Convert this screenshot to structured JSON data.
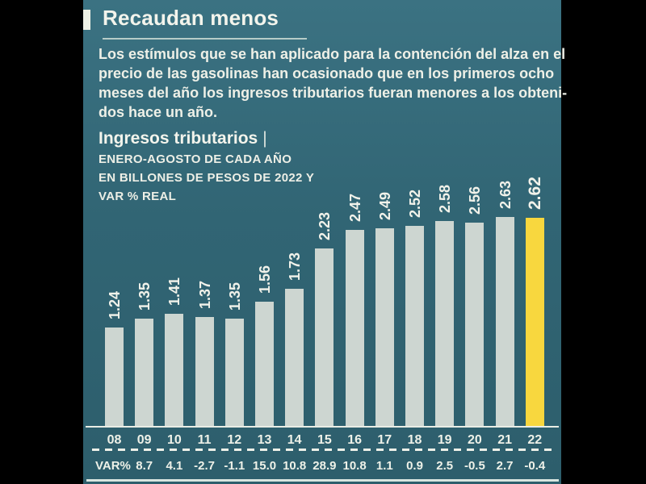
{
  "header": {
    "title": "Recaudan menos"
  },
  "intro": {
    "lines": [
      "Los estímulos que se han aplicado para la contención del alza en el",
      "precio de las gasolinas han ocasionado que en los primeros ocho",
      "meses del año los ingresos tributarios fueran menores a los obteni-",
      "dos hace un año."
    ]
  },
  "chart_header": {
    "title": "Ingresos tributarios",
    "separator": "|",
    "subtitle_lines": [
      "ENERO-AGOSTO DE CADA AÑO",
      "EN BILLONES DE PESOS DE 2022 Y",
      "VAR % REAL"
    ]
  },
  "chart_data": {
    "type": "bar",
    "title": "Ingresos tributarios, enero-agosto de cada año",
    "ylabel": "Billones de pesos de 2022",
    "categories": [
      "08",
      "09",
      "10",
      "11",
      "12",
      "13",
      "14",
      "15",
      "16",
      "17",
      "18",
      "19",
      "20",
      "21",
      "22"
    ],
    "values": [
      1.24,
      1.35,
      1.41,
      1.37,
      1.35,
      1.56,
      1.73,
      2.23,
      2.47,
      2.49,
      2.52,
      2.58,
      2.56,
      2.63,
      2.62
    ],
    "var_pct_label": "VAR%",
    "var_pct": [
      "",
      "8.7",
      "4.1",
      "-2.7",
      "-1.1",
      "15.0",
      "10.8",
      "28.9",
      "10.8",
      "1.1",
      "0.9",
      "2.5",
      "-0.5",
      "2.7",
      "-0.4"
    ],
    "highlight_index": 14,
    "bar_color": "#cdd6d1",
    "highlight_color": "#f8d73e",
    "label_color": "#f1f2ea",
    "ylim": [
      0,
      2.8
    ],
    "grid": false,
    "legend": "none"
  },
  "colors": {
    "letterbox": "#000000",
    "panel_top": "#3b7282",
    "panel_bottom": "#2d5e6c",
    "text_cream": "#eef0e7"
  }
}
